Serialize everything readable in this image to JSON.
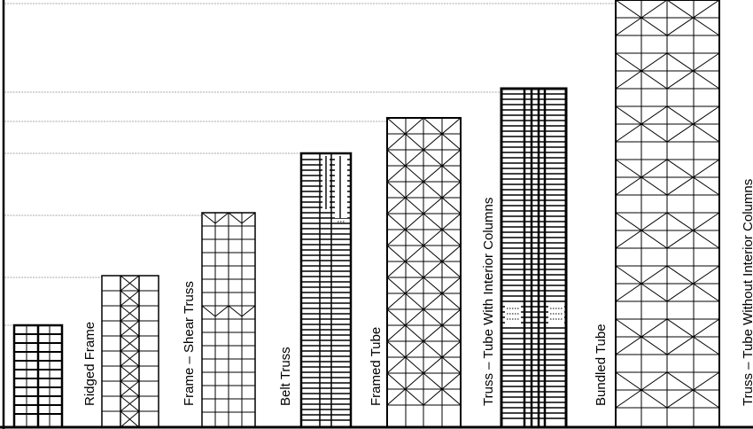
{
  "systems": [
    {
      "id": "rigid-frame-unlabeled",
      "label": "",
      "pattern": "horizontal"
    },
    {
      "id": "ridged-frame",
      "label": "Ridged Frame",
      "pattern": "frame-truss"
    },
    {
      "id": "frame-shear-truss",
      "label": "Frame – Shear Truss",
      "pattern": "grid-braced-top"
    },
    {
      "id": "belt-truss",
      "label": "Belt Truss",
      "pattern": "dense-horizontal"
    },
    {
      "id": "framed-tube",
      "label": "Framed Tube",
      "pattern": "diamond-braced"
    },
    {
      "id": "truss-tube-interior",
      "label": "Truss – Tube With Interior Columns",
      "pattern": "dense-vertical"
    },
    {
      "id": "bundled-tube",
      "label": "Bundled Tube",
      "pattern": "x-braced-tall"
    },
    {
      "id": "truss-tube-no-interior",
      "label": "Truss – Tube Without Interior Columns",
      "pattern": "none"
    }
  ],
  "colors": {
    "line": "#000000",
    "guide": "#8a8a8a",
    "background": "#ffffff"
  }
}
